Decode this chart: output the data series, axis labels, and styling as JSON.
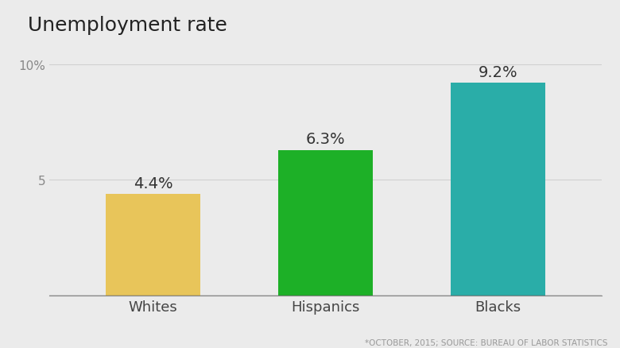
{
  "title": "Unemployment rate",
  "categories": [
    "Whites",
    "Hispanics",
    "Blacks"
  ],
  "values": [
    4.4,
    6.3,
    9.2
  ],
  "labels": [
    "4.4%",
    "6.3%",
    "9.2%"
  ],
  "bar_colors": [
    "#E8C55A",
    "#1DB027",
    "#2AADA8"
  ],
  "background_color": "#EBEBEB",
  "ylim": [
    0,
    11
  ],
  "yticks": [
    5,
    10
  ],
  "ytick_labels": [
    "5",
    "10%"
  ],
  "footnote": "*OCTOBER, 2015; SOURCE: BUREAU OF LABOR STATISTICS",
  "title_fontsize": 18,
  "label_fontsize": 14,
  "xtick_fontsize": 13,
  "ytick_fontsize": 11,
  "footnote_fontsize": 7.5,
  "bar_width": 0.55
}
